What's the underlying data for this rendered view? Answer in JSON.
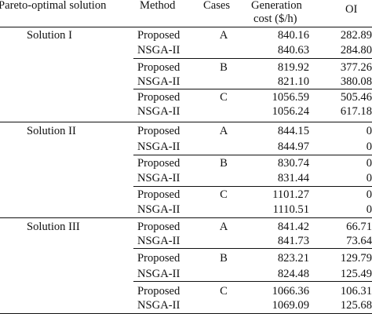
{
  "header": {
    "solution": "Pareto-optimal solution",
    "method": "Method",
    "cases": "Cases",
    "cost_line1": "Generation",
    "cost_line2": "cost ($/h)",
    "oi": "OI"
  },
  "rows": [
    {
      "solution": "Solution I",
      "method": "Proposed",
      "case": "A",
      "cost": "840.16",
      "oi": "282.89"
    },
    {
      "method": "NSGA-II",
      "cost": "840.63",
      "oi": "284.80"
    },
    {
      "method": "Proposed",
      "case": "B",
      "cost": "819.92",
      "oi": "377.26"
    },
    {
      "method": "NSGA-II",
      "cost": "821.10",
      "oi": "380.08"
    },
    {
      "method": "Proposed",
      "case": "C",
      "cost": "1056.59",
      "oi": "505.46"
    },
    {
      "method": "NSGA-II",
      "cost": "1056.24",
      "oi": "617.18"
    },
    {
      "solution": "Solution II",
      "method": "Proposed",
      "case": "A",
      "cost": "844.15",
      "oi": "0"
    },
    {
      "method": "NSGA-II",
      "cost": "844.97",
      "oi": "0"
    },
    {
      "method": "Proposed",
      "case": "B",
      "cost": "830.74",
      "oi": "0"
    },
    {
      "method": "NSGA-II",
      "cost": "831.44",
      "oi": "0"
    },
    {
      "method": "Proposed",
      "case": "C",
      "cost": "1101.27",
      "oi": "0"
    },
    {
      "method": "NSGA-II",
      "cost": "1110.51",
      "oi": "0"
    },
    {
      "solution": "Solution III",
      "method": "Proposed",
      "case": "A",
      "cost": "841.42",
      "oi": "66.71"
    },
    {
      "method": "NSGA-II",
      "cost": "841.73",
      "oi": "73.64"
    },
    {
      "method": "Proposed",
      "case": "B",
      "cost": "823.21",
      "oi": "129.79"
    },
    {
      "method": "NSGA-II",
      "cost": "824.48",
      "oi": "125.49"
    },
    {
      "method": "Proposed",
      "case": "C",
      "cost": "1066.36",
      "oi": "106.31"
    },
    {
      "method": "NSGA-II",
      "cost": "1069.09",
      "oi": "125.68"
    }
  ]
}
